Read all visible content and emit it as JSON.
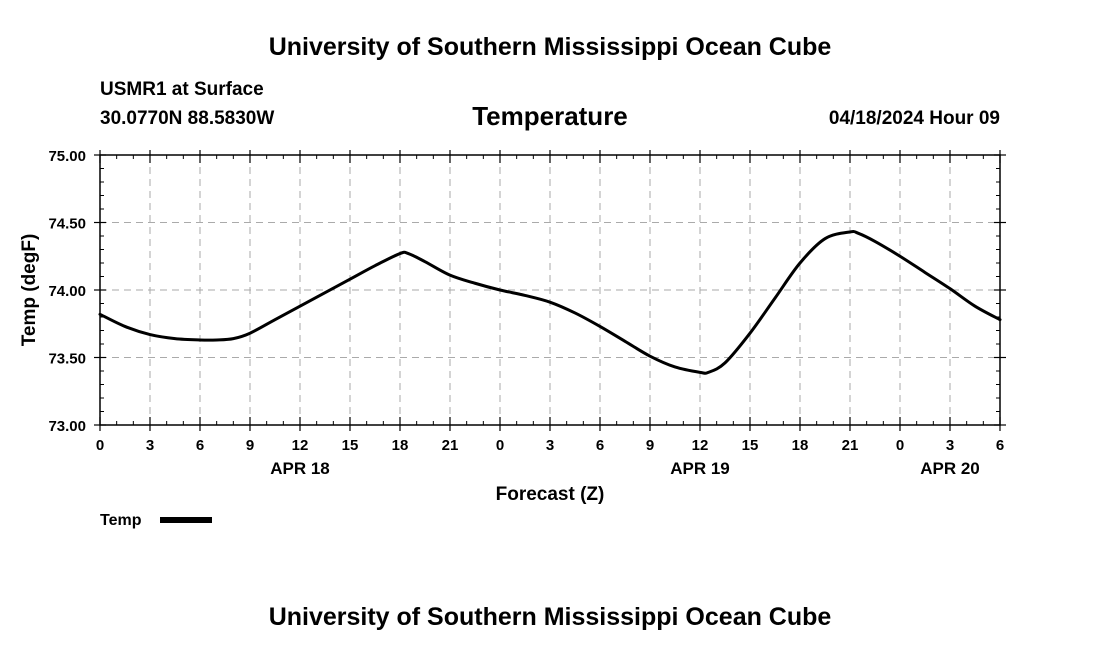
{
  "header": {
    "title": "University of Southern Mississippi Ocean Cube",
    "station": "USMR1 at Surface",
    "location": "30.0770N  88.5830W",
    "datetime": "04/18/2024 Hour 09"
  },
  "footer": {
    "title": "University of Southern Mississippi Ocean Cube"
  },
  "chart_data": {
    "type": "line",
    "title": "Temperature",
    "xlabel": "Forecast (Z)",
    "ylabel": "Temp (degF)",
    "ylim": [
      73.0,
      75.0
    ],
    "xlim": [
      0,
      54
    ],
    "grid": true,
    "yticks": [
      "73.00",
      "73.50",
      "74.00",
      "74.50",
      "75.00"
    ],
    "xticks": [
      "0",
      "3",
      "6",
      "9",
      "12",
      "15",
      "18",
      "21",
      "0",
      "3",
      "6",
      "9",
      "12",
      "15",
      "18",
      "21",
      "0",
      "3",
      "6"
    ],
    "date_labels": [
      {
        "label": "APR 18",
        "hour": 12
      },
      {
        "label": "APR 19",
        "hour": 36
      },
      {
        "label": "APR 20",
        "hour": 51
      }
    ],
    "legend": "bottom-left",
    "series": [
      {
        "name": "Temp",
        "color": "#000000",
        "x": [
          0,
          1.5,
          3,
          4.5,
          6,
          7,
          8,
          9,
          10.5,
          12,
          13.5,
          15,
          16.5,
          18,
          18.5,
          19.5,
          21,
          22.5,
          24,
          25.5,
          27,
          28.5,
          30,
          31.5,
          33,
          34.5,
          36,
          36.5,
          37.5,
          39,
          40.5,
          42,
          43.5,
          45,
          45.5,
          46.5,
          48,
          49.5,
          51,
          52.5,
          54
        ],
        "values": [
          73.82,
          73.73,
          73.67,
          73.64,
          73.63,
          73.63,
          73.64,
          73.68,
          73.78,
          73.88,
          73.98,
          74.08,
          74.18,
          74.27,
          74.27,
          74.21,
          74.11,
          74.05,
          74.0,
          73.96,
          73.91,
          73.83,
          73.73,
          73.62,
          73.51,
          73.43,
          73.39,
          73.39,
          73.46,
          73.68,
          73.94,
          74.2,
          74.38,
          74.43,
          74.42,
          74.36,
          74.25,
          74.13,
          74.01,
          73.88,
          73.78
        ]
      }
    ]
  }
}
